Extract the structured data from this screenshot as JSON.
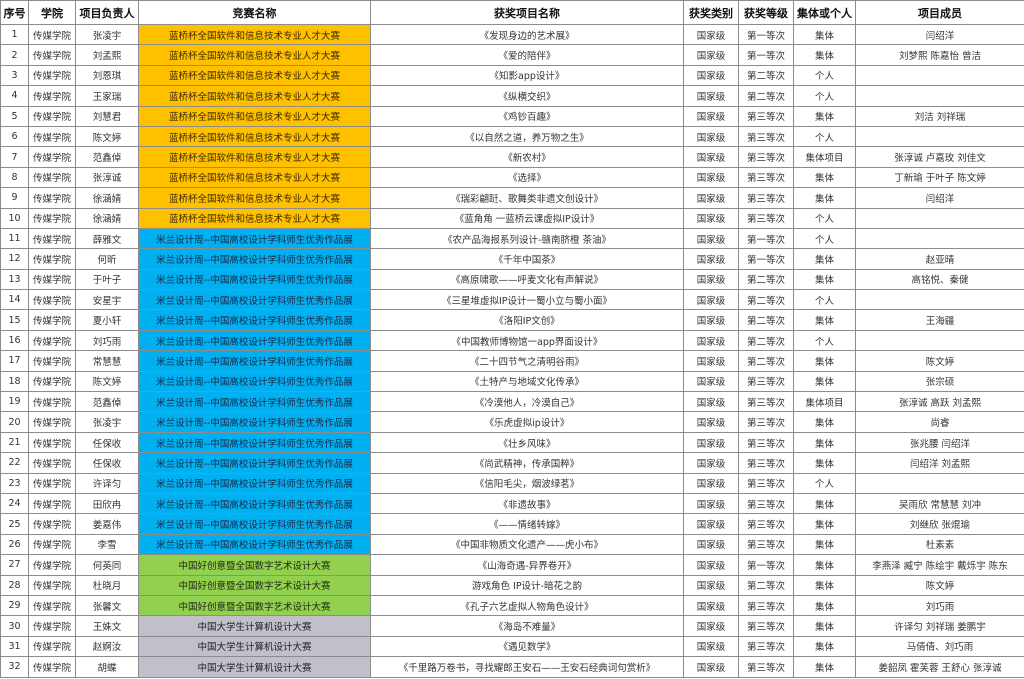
{
  "headers": [
    "序号",
    "学院",
    "项目负责人",
    "竞赛名称",
    "获奖项目名称",
    "获奖类别",
    "获奖等级",
    "集体或个人",
    "项目成员"
  ],
  "competition_colors": {
    "蓝桥杯全国软件和信息技术专业人才大赛": "#FFC000",
    "米兰设计周--中国高校设计学科师生优秀作品展": "#00B0F0",
    "中国好创意暨全国数字艺术设计大赛": "#92D050",
    "中国大学生计算机设计大赛": "#C0BFCA"
  },
  "rows": [
    {
      "no": "1",
      "college": "传媒学院",
      "leader": "张凌宇",
      "competition": "蓝桥杯全国软件和信息技术专业人才大赛",
      "project": "《发现身边的艺术展》",
      "category": "国家级",
      "level": "第一等次",
      "type": "集体",
      "members": "闫绍洋"
    },
    {
      "no": "2",
      "college": "传媒学院",
      "leader": "刘孟熙",
      "competition": "蓝桥杯全国软件和信息技术专业人才大赛",
      "project": "《爱的陪伴》",
      "category": "国家级",
      "level": "第一等次",
      "type": "集体",
      "members": "刘梦熙  陈嘉怡  曾洁"
    },
    {
      "no": "3",
      "college": "传媒学院",
      "leader": "刘恩琪",
      "competition": "蓝桥杯全国软件和信息技术专业人才大赛",
      "project": "《知影app设计》",
      "category": "国家级",
      "level": "第二等次",
      "type": "个人",
      "members": ""
    },
    {
      "no": "4",
      "college": "传媒学院",
      "leader": "王家瑞",
      "competition": "蓝桥杯全国软件和信息技术专业人才大赛",
      "project": "《纵横交织》",
      "category": "国家级",
      "level": "第二等次",
      "type": "个人",
      "members": ""
    },
    {
      "no": "5",
      "college": "传媒学院",
      "leader": "刘慧君",
      "competition": "蓝桥杯全国软件和信息技术专业人才大赛",
      "project": "《鸡钞百趣》",
      "category": "国家级",
      "level": "第三等次",
      "type": "集体",
      "members": "刘洁  刘祥瑞"
    },
    {
      "no": "6",
      "college": "传媒学院",
      "leader": "陈文婷",
      "competition": "蓝桥杯全国软件和信息技术专业人才大赛",
      "project": "《以自然之道，养万物之生》",
      "category": "国家级",
      "level": "第三等次",
      "type": "个人",
      "members": ""
    },
    {
      "no": "7",
      "college": "传媒学院",
      "leader": "范鑫倬",
      "competition": "蓝桥杯全国软件和信息技术专业人才大赛",
      "project": "《新农村》",
      "category": "国家级",
      "level": "第三等次",
      "type": "集体项目",
      "members": "张淳诚  卢嘉玫  刘佳文"
    },
    {
      "no": "8",
      "college": "传媒学院",
      "leader": "张淳诚",
      "competition": "蓝桥杯全国软件和信息技术专业人才大赛",
      "project": "《选择》",
      "category": "国家级",
      "level": "第三等次",
      "type": "集体",
      "members": "丁新瑜  于叶子  陈文婷"
    },
    {
      "no": "9",
      "college": "传媒学院",
      "leader": "徐涵婧",
      "competition": "蓝桥杯全国软件和信息技术专业人才大赛",
      "project": "《瑞彩翩跹、歌舞类非遗文创设计》",
      "category": "国家级",
      "level": "第三等次",
      "type": "集体",
      "members": "闫绍洋"
    },
    {
      "no": "10",
      "college": "传媒学院",
      "leader": "徐涵婧",
      "competition": "蓝桥杯全国软件和信息技术专业人才大赛",
      "project": "《蓝角角 一蓝桥云课虚拟IP设计》",
      "category": "国家级",
      "level": "第三等次",
      "type": "个人",
      "members": ""
    },
    {
      "no": "11",
      "college": "传媒学院",
      "leader": "薛雅文",
      "competition": "米兰设计周--中国高校设计学科师生优秀作品展",
      "project": "《农产品海报系列设计-赣南脐橙 茶油》",
      "category": "国家级",
      "level": "第一等次",
      "type": "个人",
      "members": ""
    },
    {
      "no": "12",
      "college": "传媒学院",
      "leader": "何昕",
      "competition": "米兰设计周--中国高校设计学科师生优秀作品展",
      "project": "《千年中国茶》",
      "category": "国家级",
      "level": "第一等次",
      "type": "集体",
      "members": "赵亚晴"
    },
    {
      "no": "13",
      "college": "传媒学院",
      "leader": "于叶子",
      "competition": "米兰设计周--中国高校设计学科师生优秀作品展",
      "project": "《高原啸歌——呼麦文化有声解说》",
      "category": "国家级",
      "level": "第二等次",
      "type": "集体",
      "members": "高铭悦、秦健"
    },
    {
      "no": "14",
      "college": "传媒学院",
      "leader": "安星宇",
      "competition": "米兰设计周--中国高校设计学科师生优秀作品展",
      "project": "《三星堆虚拟IP设计一蜀小立与蜀小面》",
      "category": "国家级",
      "level": "第二等次",
      "type": "个人",
      "members": ""
    },
    {
      "no": "15",
      "college": "传媒学院",
      "leader": "夏小轩",
      "competition": "米兰设计周--中国高校设计学科师生优秀作品展",
      "project": "《洛阳IP文创》",
      "category": "国家级",
      "level": "第二等次",
      "type": "集体",
      "members": "王海疆"
    },
    {
      "no": "16",
      "college": "传媒学院",
      "leader": "刘巧雨",
      "competition": "米兰设计周--中国高校设计学科师生优秀作品展",
      "project": "《中国教师博物馆一app界面设计》",
      "category": "国家级",
      "level": "第二等次",
      "type": "个人",
      "members": ""
    },
    {
      "no": "17",
      "college": "传媒学院",
      "leader": "常慧慧",
      "competition": "米兰设计周--中国高校设计学科师生优秀作品展",
      "project": "《二十四节气之清明谷雨》",
      "category": "国家级",
      "level": "第二等次",
      "type": "集体",
      "members": "陈文婷"
    },
    {
      "no": "18",
      "college": "传媒学院",
      "leader": "陈文婷",
      "competition": "米兰设计周--中国高校设计学科师生优秀作品展",
      "project": "《土特产与地域文化传承》",
      "category": "国家级",
      "level": "第三等次",
      "type": "集体",
      "members": "张宗硕"
    },
    {
      "no": "19",
      "college": "传媒学院",
      "leader": "范鑫倬",
      "competition": "米兰设计周--中国高校设计学科师生优秀作品展",
      "project": "《冷漠他人，冷漠自己》",
      "category": "国家级",
      "level": "第三等次",
      "type": "集体项目",
      "members": "张淳诚  高跃  刘孟熙"
    },
    {
      "no": "20",
      "college": "传媒学院",
      "leader": "张凌宇",
      "competition": "米兰设计周--中国高校设计学科师生优秀作品展",
      "project": "《乐虎虚拟ip设计》",
      "category": "国家级",
      "level": "第三等次",
      "type": "集体",
      "members": "尚睿"
    },
    {
      "no": "21",
      "college": "传媒学院",
      "leader": "任保收",
      "competition": "米兰设计周--中国高校设计学科师生优秀作品展",
      "project": "《壮乡风味》",
      "category": "国家级",
      "level": "第三等次",
      "type": "集体",
      "members": "张兆腰  闫绍洋"
    },
    {
      "no": "22",
      "college": "传媒学院",
      "leader": "任保收",
      "competition": "米兰设计周--中国高校设计学科师生优秀作品展",
      "project": "《尚武精神，传承国粹》",
      "category": "国家级",
      "level": "第三等次",
      "type": "集体",
      "members": "闫绍洋  刘孟熙"
    },
    {
      "no": "23",
      "college": "传媒学院",
      "leader": "许译匀",
      "competition": "米兰设计周--中国高校设计学科师生优秀作品展",
      "project": "《信阳毛尖，烟波绿茗》",
      "category": "国家级",
      "level": "第三等次",
      "type": "个人",
      "members": ""
    },
    {
      "no": "24",
      "college": "传媒学院",
      "leader": "田欣冉",
      "competition": "米兰设计周--中国高校设计学科师生优秀作品展",
      "project": "《非遗故事》",
      "category": "国家级",
      "level": "第三等次",
      "type": "集体",
      "members": "吴雨欣  常慧慧  刘冲"
    },
    {
      "no": "25",
      "college": "传媒学院",
      "leader": "姜嘉伟",
      "competition": "米兰设计周--中国高校设计学科师生优秀作品展",
      "project": "《——情绪转嫁》",
      "category": "国家级",
      "level": "第三等次",
      "type": "集体",
      "members": "刘继欣  张焜瑜"
    },
    {
      "no": "26",
      "college": "传媒学院",
      "leader": "李雪",
      "competition": "米兰设计周--中国高校设计学科师生优秀作品展",
      "project": "《中国非物质文化遗产——虎小布》",
      "category": "国家级",
      "level": "第三等次",
      "type": "集体",
      "members": "杜素素"
    },
    {
      "no": "27",
      "college": "传媒学院",
      "leader": "何英同",
      "competition": "中国好创意暨全国数字艺术设计大赛",
      "project": "《山海奇遇-异界卷开》",
      "category": "国家级",
      "level": "第一等次",
      "type": "集体",
      "members": "李燕泽  臧宁  陈绘宇  戴烁宇  陈东"
    },
    {
      "no": "28",
      "college": "传媒学院",
      "leader": "杜晓月",
      "competition": "中国好创意暨全国数字艺术设计大赛",
      "project": "游戏角色 IP设计-暗花之韵",
      "category": "国家级",
      "level": "第二等次",
      "type": "集体",
      "members": "陈文婷"
    },
    {
      "no": "29",
      "college": "传媒学院",
      "leader": "张馨文",
      "competition": "中国好创意暨全国数字艺术设计大赛",
      "project": "《孔子六艺虚拟人物角色设计》",
      "category": "国家级",
      "level": "第三等次",
      "type": "集体",
      "members": "刘巧雨"
    },
    {
      "no": "30",
      "college": "传媒学院",
      "leader": "王姝文",
      "competition": "中国大学生计算机设计大赛",
      "project": "《海岛不难量》",
      "category": "国家级",
      "level": "第三等次",
      "type": "集体",
      "members": "许译匀  刘祥瑞  姜鹏宇"
    },
    {
      "no": "31",
      "college": "传媒学院",
      "leader": "赵婀汝",
      "competition": "中国大学生计算机设计大赛",
      "project": "《遇见数学》",
      "category": "国家级",
      "level": "第三等次",
      "type": "集体",
      "members": "马倩倩、刘巧雨"
    },
    {
      "no": "32",
      "college": "传媒学院",
      "leader": "胡蝶",
      "competition": "中国大学生计算机设计大赛",
      "project": "《千里路万卷书，寻找耀郎王安石——王安石经典词句赏析》",
      "category": "国家级",
      "level": "第三等次",
      "type": "集体",
      "members": "姜韶凤  霍芙蓉  王舒心  张淳诚"
    }
  ]
}
